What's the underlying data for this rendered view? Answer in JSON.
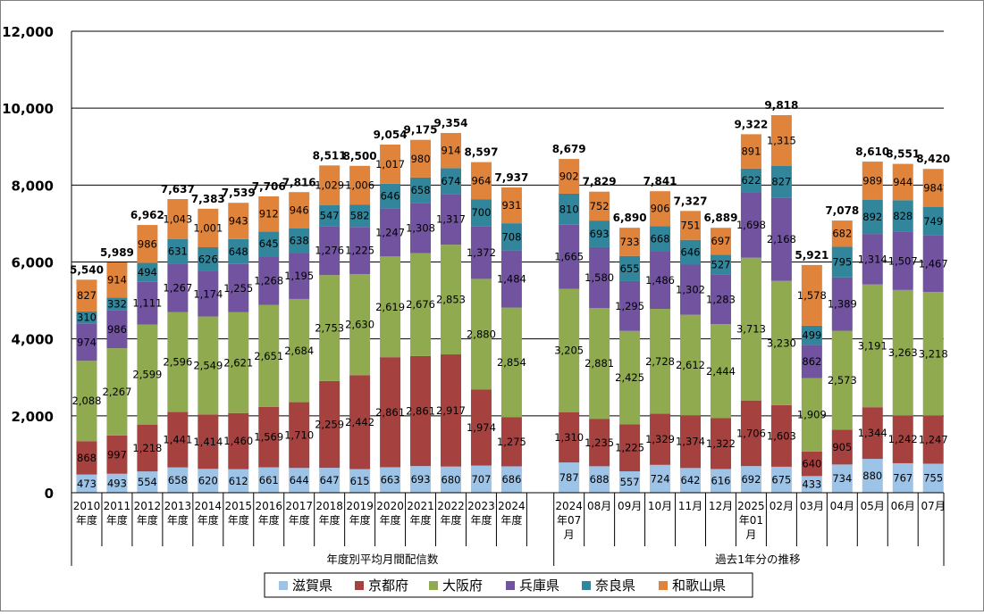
{
  "chart_data": {
    "type": "bar",
    "stacked": true,
    "ylim": [
      0,
      12000
    ],
    "yticks": [
      0,
      2000,
      4000,
      6000,
      8000,
      10000,
      12000
    ],
    "ytick_labels": [
      "0",
      "2,000",
      "4,000",
      "6,000",
      "8,000",
      "10,000",
      "12,000"
    ],
    "grid": true,
    "legend_position": "bottom",
    "groups": [
      {
        "label": "年度別平均月間配信数",
        "start": 0,
        "count": 15
      },
      {
        "label": "過去1年分の推移",
        "start": 15,
        "count": 13
      }
    ],
    "categories": [
      [
        "2010",
        "年度"
      ],
      [
        "2011",
        "年度"
      ],
      [
        "2012",
        "年度"
      ],
      [
        "2013",
        "年度"
      ],
      [
        "2014",
        "年度"
      ],
      [
        "2015",
        "年度"
      ],
      [
        "2016",
        "年度"
      ],
      [
        "2017",
        "年度"
      ],
      [
        "2018",
        "年度"
      ],
      [
        "2019",
        "年度"
      ],
      [
        "2020",
        "年度"
      ],
      [
        "2021",
        "年度"
      ],
      [
        "2022",
        "年度"
      ],
      [
        "2023",
        "年度"
      ],
      [
        "2024",
        "年度"
      ],
      [
        "2024",
        "年07",
        "月"
      ],
      [
        "08月"
      ],
      [
        "09月"
      ],
      [
        "10月"
      ],
      [
        "11月"
      ],
      [
        "12月"
      ],
      [
        "2025",
        "年01",
        "月"
      ],
      [
        "02月"
      ],
      [
        "03月"
      ],
      [
        "04月"
      ],
      [
        "05月"
      ],
      [
        "06月"
      ],
      [
        "07月"
      ]
    ],
    "series": [
      {
        "name": "滋賀県",
        "color": "#9DC3E6",
        "values": [
          473,
          493,
          554,
          658,
          620,
          612,
          661,
          644,
          647,
          615,
          663,
          693,
          680,
          707,
          686,
          787,
          688,
          557,
          724,
          642,
          616,
          692,
          675,
          433,
          734,
          880,
          767,
          755
        ]
      },
      {
        "name": "京都府",
        "color": "#A5413F",
        "values": [
          868,
          997,
          1218,
          1441,
          1414,
          1460,
          1569,
          1710,
          2259,
          2442,
          2861,
          2861,
          2917,
          1974,
          1275,
          1310,
          1235,
          1225,
          1329,
          1374,
          1322,
          1706,
          1603,
          640,
          905,
          1344,
          1242,
          1247
        ]
      },
      {
        "name": "大阪府",
        "color": "#8FAA4F",
        "values": [
          2088,
          2267,
          2599,
          2596,
          2549,
          2621,
          2651,
          2684,
          2753,
          2630,
          2619,
          2676,
          2853,
          2880,
          2854,
          3205,
          2881,
          2425,
          2728,
          2612,
          2444,
          3713,
          3230,
          1909,
          2573,
          3191,
          3263,
          3218
        ]
      },
      {
        "name": "兵庫県",
        "color": "#7153A0",
        "values": [
          974,
          986,
          1111,
          1267,
          1174,
          1255,
          1268,
          1195,
          1276,
          1225,
          1247,
          1308,
          1317,
          1372,
          1484,
          1665,
          1580,
          1295,
          1486,
          1302,
          1283,
          1698,
          2168,
          862,
          1389,
          1314,
          1507,
          1467
        ]
      },
      {
        "name": "奈良県",
        "color": "#31869B",
        "values": [
          310,
          332,
          494,
          631,
          626,
          648,
          645,
          638,
          547,
          582,
          646,
          658,
          674,
          700,
          708,
          810,
          693,
          655,
          668,
          646,
          527,
          622,
          827,
          499,
          795,
          892,
          828,
          749
        ]
      },
      {
        "name": "和歌山県",
        "color": "#E0843C",
        "values": [
          827,
          914,
          986,
          1043,
          1001,
          943,
          912,
          946,
          1029,
          1006,
          1017,
          980,
          914,
          964,
          931,
          902,
          752,
          733,
          906,
          751,
          697,
          891,
          1315,
          1578,
          682,
          989,
          944,
          984
        ]
      }
    ],
    "totals": [
      5540,
      5989,
      6962,
      7637,
      7383,
      7539,
      7706,
      7816,
      8511,
      8500,
      9054,
      9175,
      9354,
      8597,
      7937,
      8679,
      7829,
      6890,
      7841,
      7327,
      6889,
      9322,
      9818,
      5921,
      7078,
      8610,
      8551,
      8420
    ]
  }
}
